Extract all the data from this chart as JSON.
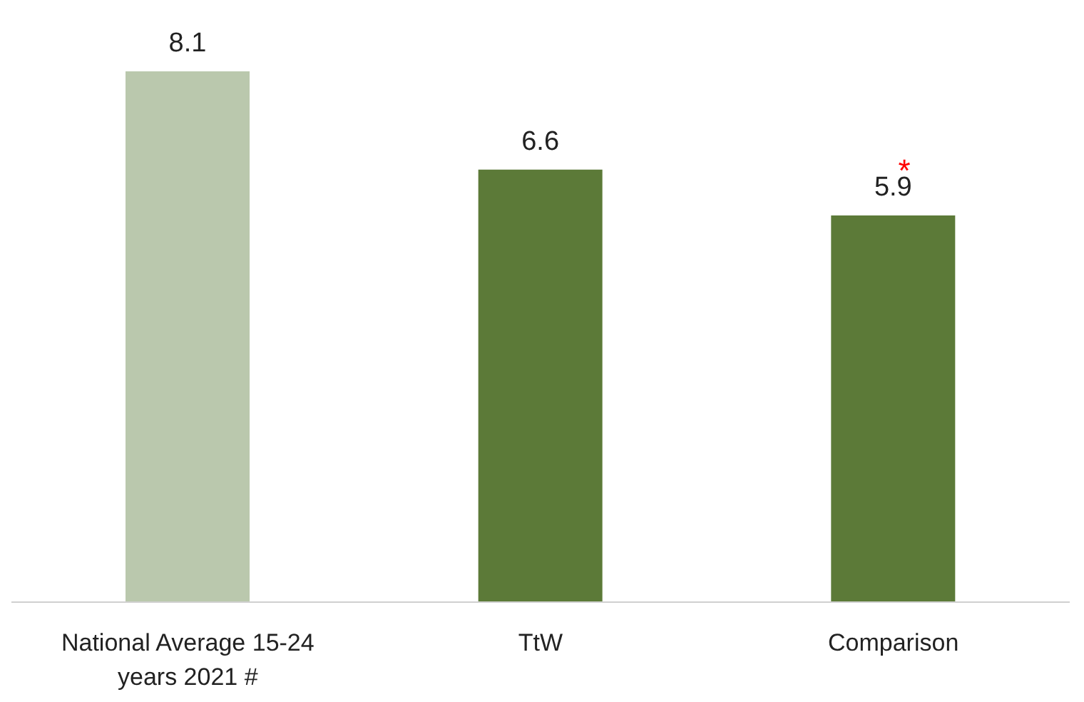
{
  "chart_data": {
    "type": "bar",
    "categories": [
      "National Average 15-24 years 2021 #",
      "TtW",
      "Comparison"
    ],
    "values": [
      8.1,
      6.6,
      5.9
    ],
    "colors": [
      "#bac8ad",
      "#5c7a38",
      "#5c7a38"
    ],
    "data_labels": true,
    "grid": false,
    "legend": false,
    "annotations": [
      "*"
    ]
  }
}
